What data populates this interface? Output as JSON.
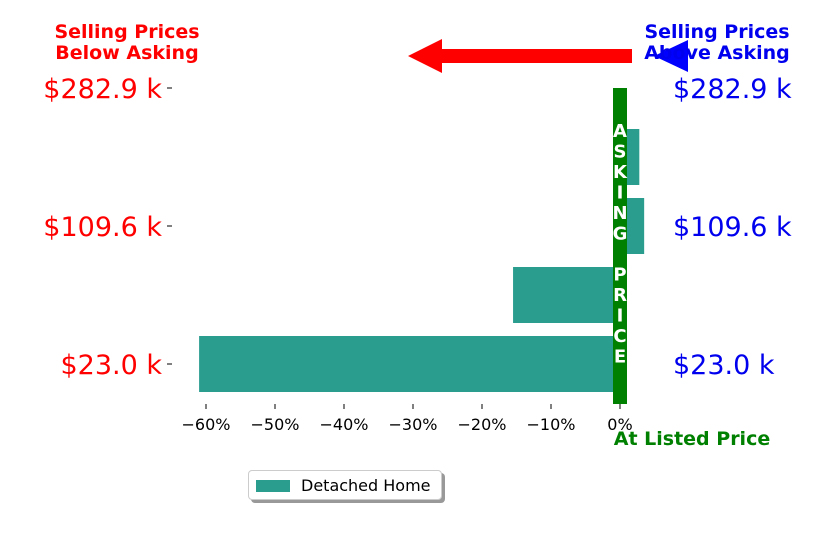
{
  "annotations": {
    "below_asking": [
      "Selling Prices",
      "Below Asking"
    ],
    "above_asking": [
      "Selling Prices",
      "Above Asking"
    ],
    "at_listed": "At Listed Price",
    "asking_price_letters": [
      "A",
      "S",
      "K",
      "I",
      "N",
      "G",
      " ",
      "P",
      "R",
      "I",
      "C",
      "E"
    ]
  },
  "colors": {
    "bar": "#2a9d8f",
    "left_labels": "#ff0000",
    "right_labels": "#0000ee",
    "asking_line": "#008000",
    "arrow_left": "#ff0000",
    "arrow_right": "#0000ff"
  },
  "chart_data": {
    "type": "bar",
    "orientation": "horizontal",
    "categories": [
      "$23.0 k",
      "",
      "$109.6 k",
      "",
      "$282.9 k"
    ],
    "series": [
      {
        "name": "Detached Home",
        "values": [
          -61,
          -15.5,
          3.5,
          2.8,
          0
        ]
      }
    ],
    "left_tick_labels": [
      "$23.0 k",
      "$109.6 k",
      "$282.9 k"
    ],
    "right_tick_labels": [
      "$23.0 k",
      "$109.6 k",
      "$282.9 k"
    ],
    "x_ticks": [
      -60,
      -50,
      -40,
      -30,
      -20,
      -10,
      0
    ],
    "x_tick_labels": [
      "−60%",
      "−50%",
      "−40%",
      "−30%",
      "−20%",
      "−10%",
      "0%"
    ],
    "xlim": [
      -63.5,
      3.6
    ],
    "legend": {
      "entries": [
        "Detached Home"
      ],
      "placement": "bottom-left"
    },
    "grid": false
  }
}
